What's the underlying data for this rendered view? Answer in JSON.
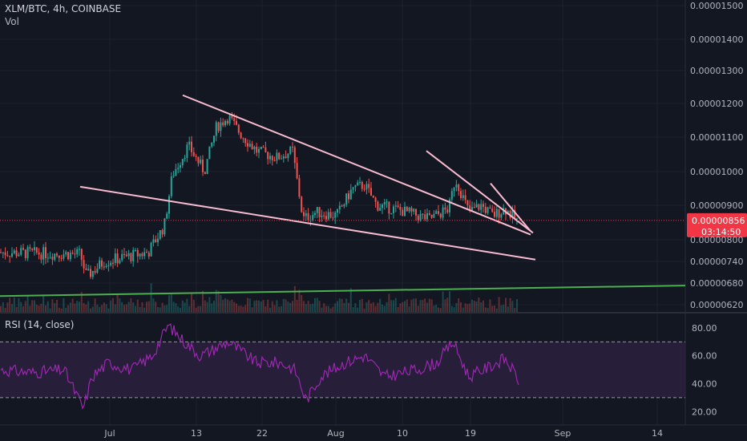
{
  "header": {
    "symbol_line": "XLM/BTC, 4h, COINBASE",
    "vol_label": "Vol"
  },
  "rsi_header": {
    "label": "RSI (14, close)"
  },
  "colors": {
    "background": "#131722",
    "grid": "#1e222d",
    "up": "#26a69a",
    "down": "#ef5350",
    "trendline": "#f8bbd0",
    "support": "#4caf50",
    "rsi_line": "#9c27b0",
    "rsi_band": "#2a1f3d",
    "price_tag": "#f23645"
  },
  "chart_data": [
    {
      "type": "candlestick",
      "title": "XLM/BTC, 4h, COINBASE",
      "y_ticks": [
        "0.00001500",
        "0.00001400",
        "0.00001300",
        "0.00001200",
        "0.00001100",
        "0.00001000",
        "0.00000900",
        "0.00000800",
        "0.00000740",
        "0.00000680",
        "0.00000620"
      ],
      "x_ticks": [
        "Jul",
        "13",
        "22",
        "Aug",
        "10",
        "19",
        "Sep",
        "14"
      ],
      "last_price": "0.00000856",
      "countdown": "03:14:50",
      "keyframes": [
        {
          "x": 0,
          "price": 7.65e-06
        },
        {
          "x": 100,
          "price": 7.6e-06
        },
        {
          "x": 108,
          "price": 6.98e-06
        },
        {
          "x": 130,
          "price": 7.4e-06
        },
        {
          "x": 185,
          "price": 7.65e-06
        },
        {
          "x": 205,
          "price": 8.4e-06
        },
        {
          "x": 215,
          "price": 9.9e-06
        },
        {
          "x": 235,
          "price": 1.075e-05
        },
        {
          "x": 255,
          "price": 1e-05
        },
        {
          "x": 270,
          "price": 1.13e-05
        },
        {
          "x": 285,
          "price": 1.16e-05
        },
        {
          "x": 300,
          "price": 1.11e-05
        },
        {
          "x": 320,
          "price": 1.06e-05
        },
        {
          "x": 345,
          "price": 1.04e-05
        },
        {
          "x": 365,
          "price": 1.06e-05
        },
        {
          "x": 378,
          "price": 8.6e-06
        },
        {
          "x": 395,
          "price": 8.8e-06
        },
        {
          "x": 420,
          "price": 8.7e-06
        },
        {
          "x": 440,
          "price": 9.5e-06
        },
        {
          "x": 455,
          "price": 9.6e-06
        },
        {
          "x": 470,
          "price": 9e-06
        },
        {
          "x": 500,
          "price": 8.85e-06
        },
        {
          "x": 535,
          "price": 8.6e-06
        },
        {
          "x": 560,
          "price": 8.9e-06
        },
        {
          "x": 568,
          "price": 9.8e-06
        },
        {
          "x": 585,
          "price": 8.8e-06
        },
        {
          "x": 600,
          "price": 9e-06
        },
        {
          "x": 615,
          "price": 8.7e-06
        },
        {
          "x": 630,
          "price": 8.9e-06
        },
        {
          "x": 645,
          "price": 8.56e-06
        }
      ],
      "trendlines": [
        {
          "name": "upper-trendline",
          "x1": 228,
          "p1": 1.225e-05,
          "x2": 662,
          "p2": 8.15e-06
        },
        {
          "name": "lower-trendline",
          "x1": 100,
          "p1": 9.55e-06,
          "x2": 668,
          "p2": 7.45e-06
        },
        {
          "name": "short-trendline-1",
          "x1": 532,
          "p1": 1.06e-05,
          "x2": 665,
          "p2": 8.2e-06
        },
        {
          "name": "short-trendline-2",
          "x1": 612,
          "p1": 9.65e-06,
          "x2": 662,
          "p2": 8.25e-06
        },
        {
          "name": "support-line",
          "x1": 0,
          "p1": 6.44e-06,
          "x2": 855,
          "p2": 6.73e-06
        }
      ]
    },
    {
      "type": "line",
      "title": "RSI (14, close)",
      "y_ticks": [
        "80.00",
        "60.00",
        "40.00",
        "20.00"
      ],
      "ylim": [
        15,
        88
      ],
      "band": [
        30,
        70
      ],
      "keyframes": [
        {
          "x": 0,
          "v": 50
        },
        {
          "x": 40,
          "v": 48
        },
        {
          "x": 80,
          "v": 50
        },
        {
          "x": 104,
          "v": 22
        },
        {
          "x": 115,
          "v": 45
        },
        {
          "x": 135,
          "v": 55
        },
        {
          "x": 165,
          "v": 50
        },
        {
          "x": 190,
          "v": 60
        },
        {
          "x": 210,
          "v": 82
        },
        {
          "x": 230,
          "v": 70
        },
        {
          "x": 250,
          "v": 60
        },
        {
          "x": 285,
          "v": 70
        },
        {
          "x": 320,
          "v": 55
        },
        {
          "x": 350,
          "v": 55
        },
        {
          "x": 368,
          "v": 50
        },
        {
          "x": 382,
          "v": 28
        },
        {
          "x": 400,
          "v": 45
        },
        {
          "x": 430,
          "v": 55
        },
        {
          "x": 455,
          "v": 60
        },
        {
          "x": 480,
          "v": 45
        },
        {
          "x": 520,
          "v": 50
        },
        {
          "x": 545,
          "v": 55
        },
        {
          "x": 565,
          "v": 70
        },
        {
          "x": 585,
          "v": 45
        },
        {
          "x": 610,
          "v": 52
        },
        {
          "x": 630,
          "v": 58
        },
        {
          "x": 648,
          "v": 42
        }
      ]
    }
  ]
}
